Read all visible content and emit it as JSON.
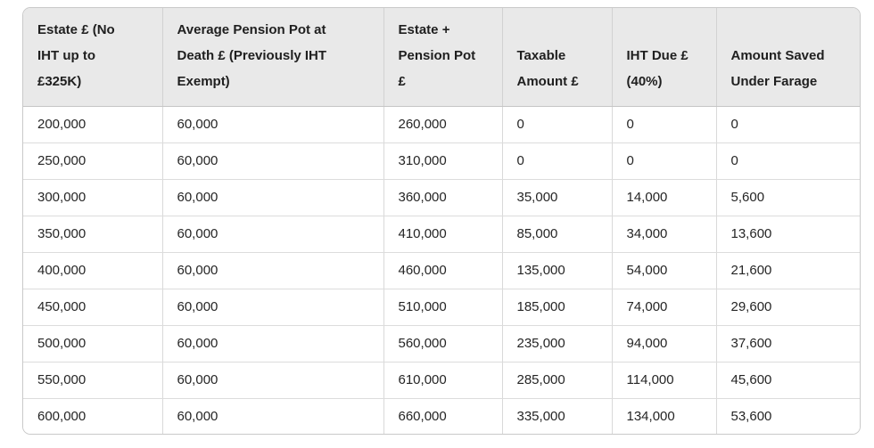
{
  "table": {
    "columns": [
      {
        "label": "Estate £ (No\nIHT up to\n£325K)"
      },
      {
        "label": "Average Pension Pot at\nDeath £ (Previously IHT\nExempt)"
      },
      {
        "label": "Estate +\nPension Pot\n£"
      },
      {
        "label": "Taxable\nAmount £"
      },
      {
        "label": "IHT Due £\n(40%)"
      },
      {
        "label": "Amount Saved\nUnder Farage"
      }
    ],
    "rows": [
      {
        "cells": [
          "200,000",
          "60,000",
          "260,000",
          "0",
          "0",
          "0"
        ]
      },
      {
        "cells": [
          "250,000",
          "60,000",
          "310,000",
          "0",
          "0",
          "0"
        ]
      },
      {
        "cells": [
          "300,000",
          "60,000",
          "360,000",
          "35,000",
          "14,000",
          "5,600"
        ]
      },
      {
        "cells": [
          "350,000",
          "60,000",
          "410,000",
          "85,000",
          "34,000",
          "13,600"
        ]
      },
      {
        "cells": [
          "400,000",
          "60,000",
          "460,000",
          "135,000",
          "54,000",
          "21,600"
        ]
      },
      {
        "cells": [
          "450,000",
          "60,000",
          "510,000",
          "185,000",
          "74,000",
          "29,600"
        ]
      },
      {
        "cells": [
          "500,000",
          "60,000",
          "560,000",
          "235,000",
          "94,000",
          "37,600"
        ]
      },
      {
        "cells": [
          "550,000",
          "60,000",
          "610,000",
          "285,000",
          "114,000",
          "45,600"
        ]
      },
      {
        "cells": [
          "600,000",
          "60,000",
          "660,000",
          "335,000",
          "134,000",
          "53,600"
        ]
      }
    ]
  },
  "chart_data": {
    "type": "table",
    "title": "",
    "columns": [
      "Estate £ (No IHT up to £325K)",
      "Average Pension Pot at Death £ (Previously IHT Exempt)",
      "Estate + Pension Pot £",
      "Taxable Amount £",
      "IHT Due £ (40%)",
      "Amount Saved Under Farage"
    ],
    "rows": [
      [
        200000,
        60000,
        260000,
        0,
        0,
        0
      ],
      [
        250000,
        60000,
        310000,
        0,
        0,
        0
      ],
      [
        300000,
        60000,
        360000,
        35000,
        14000,
        5600
      ],
      [
        350000,
        60000,
        410000,
        85000,
        34000,
        13600
      ],
      [
        400000,
        60000,
        460000,
        135000,
        54000,
        21600
      ],
      [
        450000,
        60000,
        510000,
        185000,
        74000,
        29600
      ],
      [
        500000,
        60000,
        560000,
        235000,
        94000,
        37600
      ],
      [
        550000,
        60000,
        610000,
        285000,
        114000,
        45600
      ],
      [
        600000,
        60000,
        660000,
        335000,
        134000,
        53600
      ]
    ]
  },
  "colors": {
    "header_background": "#e9e9e9",
    "outer_border": "#c9c9c9",
    "cell_border": "#d9d9d9",
    "text": "#252525"
  }
}
